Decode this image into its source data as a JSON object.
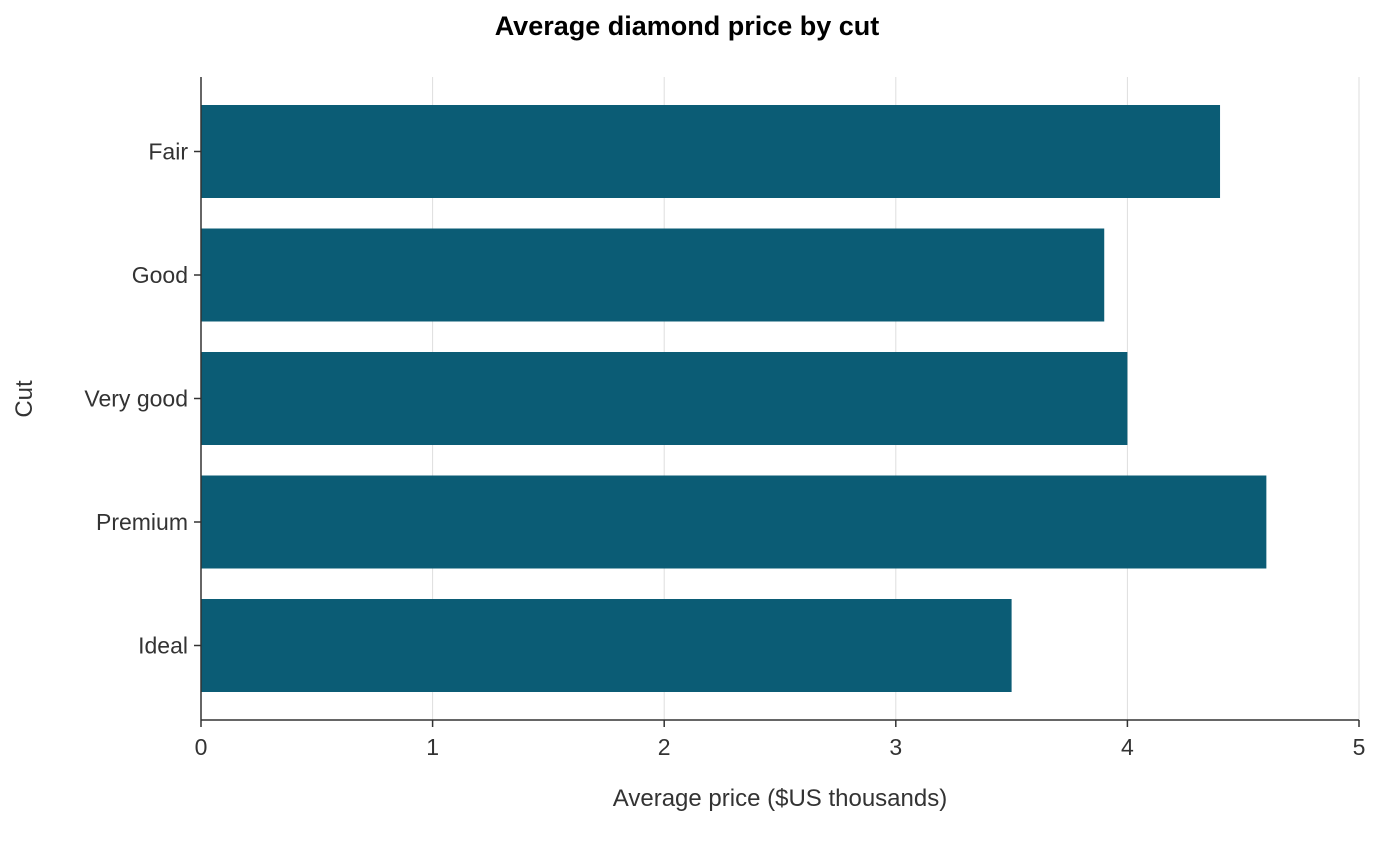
{
  "chart_data": {
    "type": "bar",
    "orientation": "horizontal",
    "title": "Average diamond price by cut",
    "xlabel": "Average price ($US thousands)",
    "ylabel": "Cut",
    "categories": [
      "Fair",
      "Good",
      "Very good",
      "Premium",
      "Ideal"
    ],
    "values": [
      4.4,
      3.9,
      4.0,
      4.6,
      3.5
    ],
    "xlim": [
      0,
      5
    ],
    "x_ticks": [
      "0",
      "1",
      "2",
      "3",
      "4",
      "5"
    ],
    "grid": "vertical major gridlines",
    "legend": "none",
    "colors": {
      "bar": "#0b5c75",
      "grid": "#dedede",
      "axis": "#333333",
      "text": "#333333",
      "title": "#000000"
    }
  }
}
